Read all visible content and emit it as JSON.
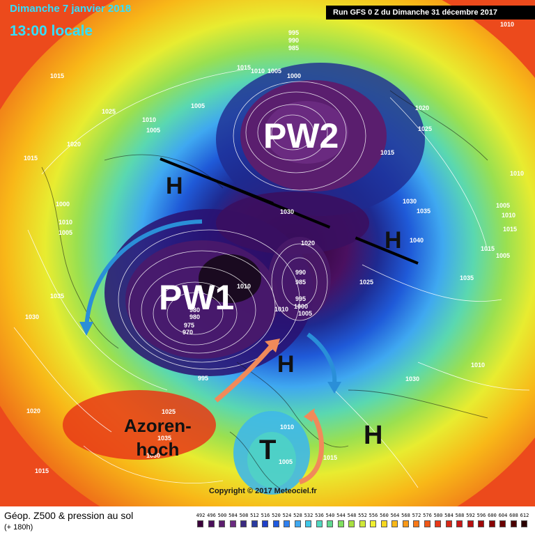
{
  "header": {
    "date_line": "Dimanche 7 janvier 2018",
    "time_line": "13:00 locale",
    "run_line": "Run GFS 0 Z du Dimanche 31 décembre 2017"
  },
  "annotations": {
    "pw1": "PW1",
    "pw2": "PW2",
    "high_marker": "H",
    "low_marker": "T",
    "azores_line1": "Azoren-",
    "azores_line2": "hoch"
  },
  "pressure_labels": [
    "995",
    "990",
    "985",
    "1010",
    "1005",
    "1015",
    "1000",
    "1020",
    "1025",
    "1030",
    "1035",
    "1040",
    "980",
    "975",
    "970"
  ],
  "copyright": "Copyright © 2017 Meteociel.fr",
  "legend": {
    "title": "Géop. Z500 & pression au sol",
    "subtitle": "(+ 180h)",
    "scale_values": [
      "492",
      "496",
      "500",
      "504",
      "508",
      "512",
      "516",
      "520",
      "524",
      "528",
      "532",
      "536",
      "540",
      "544",
      "548",
      "552",
      "556",
      "560",
      "564",
      "568",
      "572",
      "576",
      "580",
      "584",
      "588",
      "592",
      "596",
      "600",
      "604",
      "608",
      "612"
    ],
    "scale_colors": [
      "#3a003a",
      "#4a0f5a",
      "#5c1e6e",
      "#6a2a80",
      "#3a2a80",
      "#2a3aa0",
      "#2040c8",
      "#1e5ae0",
      "#2f80f0",
      "#3fa8f0",
      "#40c8e8",
      "#50d8c0",
      "#60d890",
      "#80e060",
      "#a8e040",
      "#d0e838",
      "#f0f030",
      "#f8d820",
      "#f8b818",
      "#f89818",
      "#f87818",
      "#f05818",
      "#e83818",
      "#d82818",
      "#c81818",
      "#b81010",
      "#a00808",
      "#880404",
      "#6a0202",
      "#4a0000",
      "#2a0000"
    ]
  },
  "colors": {
    "title_cyan": "#33e0ff",
    "arrow_blue": "#2a8fd8",
    "arrow_orange": "#f08a5a"
  }
}
